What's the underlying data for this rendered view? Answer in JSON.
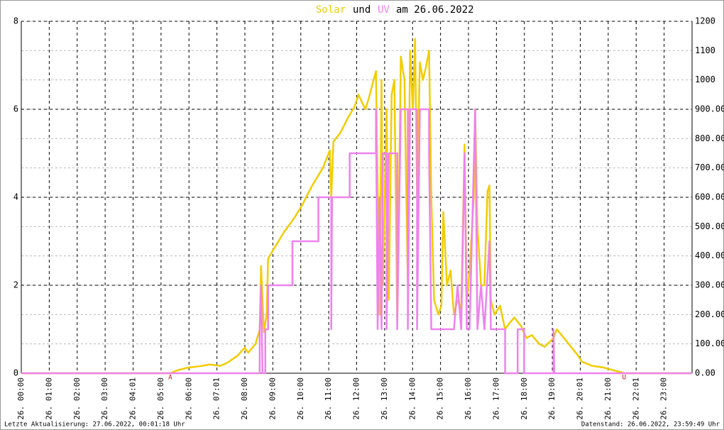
{
  "chart_data": {
    "type": "line",
    "title_join": "und",
    "title_date": "am 26.06.2022",
    "xlim": [
      0,
      24
    ],
    "xticks": [
      {
        "value": 0,
        "label": "26. 00:00"
      },
      {
        "value": 1,
        "label": "26. 01:00"
      },
      {
        "value": 2,
        "label": "26. 02:00"
      },
      {
        "value": 3,
        "label": "26. 03:00"
      },
      {
        "value": 4,
        "label": "26. 04:01"
      },
      {
        "value": 5,
        "label": "26. 05:00"
      },
      {
        "value": 6,
        "label": "26. 06:00"
      },
      {
        "value": 7,
        "label": "26. 07:01"
      },
      {
        "value": 8,
        "label": "26. 08:00"
      },
      {
        "value": 9,
        "label": "26. 09:00"
      },
      {
        "value": 10,
        "label": "26. 10:00"
      },
      {
        "value": 11,
        "label": "26. 11:00"
      },
      {
        "value": 12,
        "label": "26. 12:00"
      },
      {
        "value": 13,
        "label": "26. 13:00"
      },
      {
        "value": 14,
        "label": "26. 14:00"
      },
      {
        "value": 15,
        "label": "26. 15:00"
      },
      {
        "value": 16,
        "label": "26. 16:00"
      },
      {
        "value": 17,
        "label": "26. 17:00"
      },
      {
        "value": 18,
        "label": "26. 18:00"
      },
      {
        "value": 19,
        "label": "26. 19:00"
      },
      {
        "value": 20,
        "label": "26. 20:01"
      },
      {
        "value": 21,
        "label": "26. 21:00"
      },
      {
        "value": 22,
        "label": "26. 22:01"
      },
      {
        "value": 23,
        "label": "26. 23:00"
      }
    ],
    "ylim": [
      0,
      8
    ],
    "yticks": [
      0,
      2,
      4,
      6,
      8
    ],
    "y2lim": [
      0,
      1200
    ],
    "y2ticks": [
      {
        "value": 0,
        "label": "0.00"
      },
      {
        "value": 100,
        "label": "100.00"
      },
      {
        "value": 200,
        "label": "200.00"
      },
      {
        "value": 300,
        "label": "300.00"
      },
      {
        "value": 400,
        "label": "400.00"
      },
      {
        "value": 500,
        "label": "500.00"
      },
      {
        "value": 600,
        "label": "600.00"
      },
      {
        "value": 700,
        "label": "700.00"
      },
      {
        "value": 800,
        "label": "800.00"
      },
      {
        "value": 900,
        "label": "900.00"
      },
      {
        "value": 1000,
        "label": "1000"
      },
      {
        "value": 1100,
        "label": "1100"
      },
      {
        "value": 1200,
        "label": "1200"
      }
    ],
    "grid": true,
    "series": [
      {
        "name": "Solar",
        "color": "#f2cc00",
        "axis": "y2",
        "x": [
          0,
          5.33,
          5.58,
          5.96,
          6.47,
          6.73,
          7.11,
          7.36,
          7.74,
          7.99,
          8.12,
          8.38,
          8.53,
          8.58,
          8.68,
          8.78,
          8.83,
          9.01,
          9.39,
          9.77,
          10.03,
          10.41,
          10.79,
          11.04,
          11.09,
          11.17,
          11.42,
          11.68,
          11.93,
          12.06,
          12.31,
          12.44,
          12.69,
          12.82,
          12.89,
          12.94,
          13.07,
          13.15,
          13.25,
          13.35,
          13.45,
          13.58,
          13.71,
          13.83,
          13.91,
          14.01,
          14.09,
          14.16,
          14.26,
          14.37,
          14.47,
          14.59,
          14.67,
          14.77,
          14.92,
          15.03,
          15.1,
          15.23,
          15.36,
          15.48,
          15.61,
          15.74,
          15.86,
          15.94,
          16.04,
          16.19,
          16.24,
          16.32,
          16.45,
          16.57,
          16.68,
          16.75,
          16.8,
          16.93,
          17.13,
          17.31,
          17.46,
          17.64,
          17.89,
          18.07,
          18.27,
          18.53,
          18.73,
          19.04,
          19.16,
          19.42,
          19.67,
          19.92,
          20.05,
          20.43,
          20.81,
          21.19,
          21.52,
          21.57,
          24
        ],
        "values": [
          0,
          0,
          10,
          19,
          25,
          30,
          25,
          35,
          60,
          87,
          70,
          100,
          148,
          365,
          140,
          200,
          390,
          420,
          480,
          530,
          570,
          640,
          700,
          760,
          600,
          790,
          820,
          870,
          910,
          950,
          900,
          940,
          1030,
          200,
          1000,
          300,
          900,
          250,
          950,
          1000,
          180,
          1080,
          1000,
          300,
          1100,
          900,
          1140,
          600,
          1060,
          1000,
          1040,
          1100,
          600,
          250,
          200,
          230,
          550,
          300,
          350,
          200,
          250,
          220,
          780,
          250,
          350,
          600,
          900,
          500,
          300,
          300,
          620,
          640,
          250,
          200,
          230,
          150,
          170,
          190,
          160,
          120,
          130,
          100,
          90,
          120,
          150,
          120,
          90,
          60,
          40,
          25,
          20,
          10,
          2,
          0,
          0
        ]
      },
      {
        "name": "UV",
        "color": "#ee82ee",
        "x": [
          0,
          8.53,
          8.53,
          8.58,
          8.63,
          8.73,
          8.73,
          8.83,
          8.83,
          9.7,
          9.7,
          10.63,
          10.63,
          11.09,
          11.09,
          11.12,
          11.75,
          11.75,
          12.69,
          12.69,
          12.75,
          12.82,
          12.89,
          12.94,
          13.07,
          13.07,
          13.15,
          13.45,
          13.45,
          13.58,
          13.83,
          13.83,
          13.91,
          14.16,
          14.16,
          14.26,
          14.59,
          14.59,
          14.67,
          15.48,
          15.61,
          15.74,
          15.86,
          15.94,
          16.04,
          16.24,
          16.32,
          16.45,
          16.57,
          16.75,
          16.8,
          17.31,
          17.31,
          17.76,
          17.76,
          17.99,
          17.99,
          19.04,
          19.04,
          19.07,
          24
        ],
        "values": [
          0,
          0,
          1,
          2,
          0,
          0,
          1,
          1,
          2,
          2,
          3,
          3,
          4,
          4,
          1,
          4,
          4,
          5,
          5,
          6,
          1,
          4,
          1,
          5,
          5,
          1,
          5,
          5,
          1,
          6,
          6,
          1,
          6,
          6,
          1,
          6,
          6,
          5,
          1,
          1,
          2,
          1,
          5,
          1,
          1,
          6,
          1,
          2,
          1,
          3,
          1,
          1,
          0,
          0,
          1,
          1,
          0,
          0,
          1,
          0,
          0
        ]
      }
    ],
    "annotations": [
      {
        "text": "A",
        "x": 5.33
      },
      {
        "text": "U",
        "x": 21.57
      }
    ],
    "footer": [
      "Letzte Aktualisierung: 27.06.2022, 00:01:18 Uhr",
      "Datenstand: 26.06.2022, 23:59:49 Uhr"
    ]
  }
}
